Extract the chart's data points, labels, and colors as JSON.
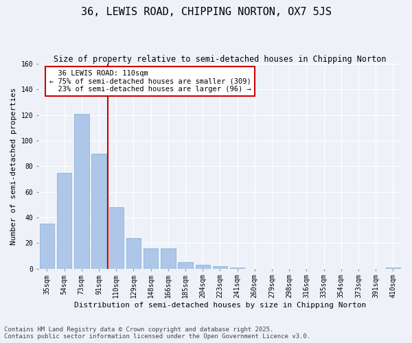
{
  "title": "36, LEWIS ROAD, CHIPPING NORTON, OX7 5JS",
  "subtitle": "Size of property relative to semi-detached houses in Chipping Norton",
  "xlabel": "Distribution of semi-detached houses by size in Chipping Norton",
  "ylabel": "Number of semi-detached properties",
  "categories": [
    "35sqm",
    "54sqm",
    "73sqm",
    "91sqm",
    "110sqm",
    "129sqm",
    "148sqm",
    "166sqm",
    "185sqm",
    "204sqm",
    "223sqm",
    "241sqm",
    "260sqm",
    "279sqm",
    "298sqm",
    "316sqm",
    "335sqm",
    "354sqm",
    "373sqm",
    "391sqm",
    "410sqm"
  ],
  "values": [
    35,
    75,
    121,
    90,
    48,
    24,
    16,
    16,
    5,
    3,
    2,
    1,
    0,
    0,
    0,
    0,
    0,
    0,
    0,
    0,
    1
  ],
  "bar_color": "#aec6e8",
  "bar_edge_color": "#7aafd4",
  "property_line_index": 4,
  "property_line_label": "36 LEWIS ROAD: 110sqm",
  "pct_smaller": 75,
  "count_smaller": 309,
  "pct_larger": 23,
  "count_larger": 96,
  "annotation_box_color": "#cc0000",
  "ylim": [
    0,
    160
  ],
  "yticks": [
    0,
    20,
    40,
    60,
    80,
    100,
    120,
    140,
    160
  ],
  "background_color": "#eef2f8",
  "footer": "Contains HM Land Registry data © Crown copyright and database right 2025.\nContains public sector information licensed under the Open Government Licence v3.0.",
  "title_fontsize": 11,
  "subtitle_fontsize": 8.5,
  "axis_label_fontsize": 8,
  "tick_fontsize": 7,
  "footer_fontsize": 6.5,
  "annotation_fontsize": 7.5
}
